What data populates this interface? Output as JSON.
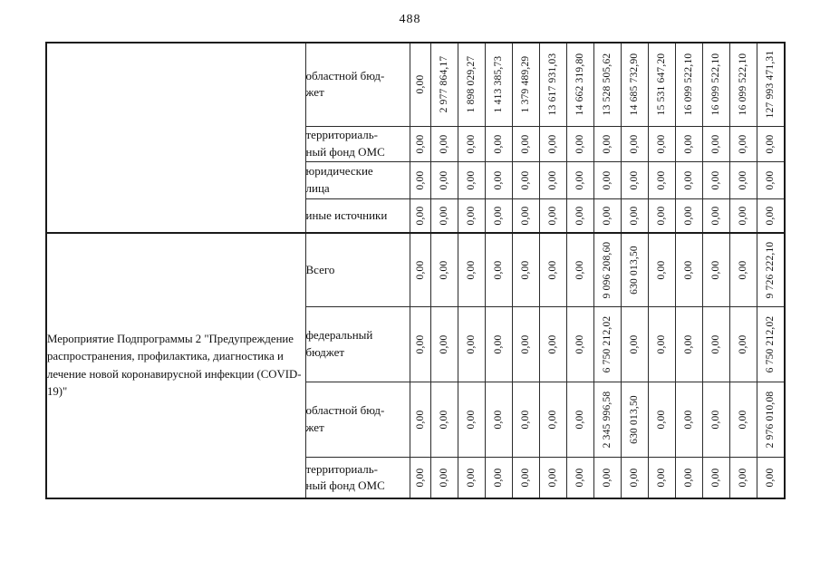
{
  "page": {
    "number": "488"
  },
  "table": {
    "blocks": [
      {
        "description": "",
        "rows": [
          {
            "label": "областной бюд-\nжет",
            "values": [
              "0,00",
              "2 977 864,17",
              "1 898 029,27",
              "1 413 385,73",
              "1 379 489,29",
              "13 617 931,03",
              "14 662 319,80",
              "13 528 505,62",
              "14 685 732,90",
              "15 531 647,20",
              "16 099 522,10",
              "16 099 522,10",
              "16 099 522,10",
              "127 993 471,31"
            ]
          },
          {
            "label": "территориаль-\nный фонд ОМС",
            "values": [
              "0,00",
              "0,00",
              "0,00",
              "0,00",
              "0,00",
              "0,00",
              "0,00",
              "0,00",
              "0,00",
              "0,00",
              "0,00",
              "0,00",
              "0,00",
              "0,00"
            ]
          },
          {
            "label": "юридические\nлица",
            "values": [
              "0,00",
              "0,00",
              "0,00",
              "0,00",
              "0,00",
              "0,00",
              "0,00",
              "0,00",
              "0,00",
              "0,00",
              "0,00",
              "0,00",
              "0,00",
              "0,00"
            ]
          },
          {
            "label": "иные источники",
            "values": [
              "0,00",
              "0,00",
              "0,00",
              "0,00",
              "0,00",
              "0,00",
              "0,00",
              "0,00",
              "0,00",
              "0,00",
              "0,00",
              "0,00",
              "0,00",
              "0,00"
            ]
          }
        ]
      },
      {
        "description": "Мероприятие Подпрограммы 2 \"Предупреждение распространения, профилактика, диагностика и лечение новой коронавирусной инфекции (COVID-19)\"",
        "rows": [
          {
            "label": "Всего",
            "values": [
              "0,00",
              "0,00",
              "0,00",
              "0,00",
              "0,00",
              "0,00",
              "0,00",
              "9 096 208,60",
              "630 013,50",
              "0,00",
              "0,00",
              "0,00",
              "0,00",
              "9 726 222,10"
            ]
          },
          {
            "label": "федеральный\nбюджет",
            "values": [
              "0,00",
              "0,00",
              "0,00",
              "0,00",
              "0,00",
              "0,00",
              "0,00",
              "6 750 212,02",
              "0,00",
              "0,00",
              "0,00",
              "0,00",
              "0,00",
              "6 750 212,02"
            ]
          },
          {
            "label": "областной бюд-\nжет",
            "values": [
              "0,00",
              "0,00",
              "0,00",
              "0,00",
              "0,00",
              "0,00",
              "0,00",
              "2 345 996,58",
              "630 013,50",
              "0,00",
              "0,00",
              "0,00",
              "0,00",
              "2 976 010,08"
            ]
          },
          {
            "label": "территориаль-\nный фонд ОМС",
            "values": [
              "0,00",
              "0,00",
              "0,00",
              "0,00",
              "0,00",
              "0,00",
              "0,00",
              "0,00",
              "0,00",
              "0,00",
              "0,00",
              "0,00",
              "0,00",
              "0,00"
            ]
          }
        ]
      }
    ]
  }
}
